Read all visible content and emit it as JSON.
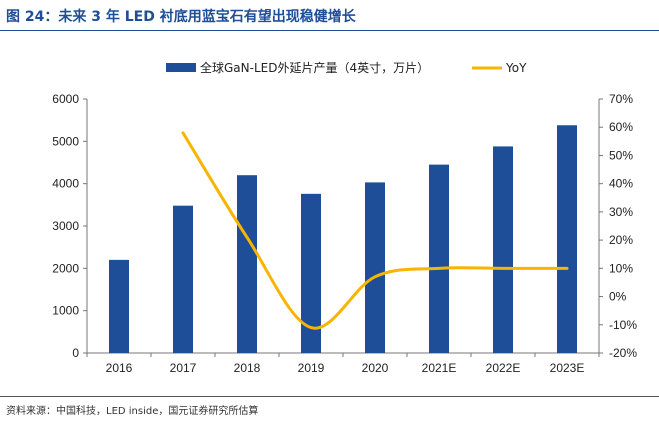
{
  "figure": {
    "title": "图 24：未来 3 年 LED 衬底用蓝宝石有望出现稳健增长",
    "source": "资料来源：中国科技，LED inside，国元证券研究所估算"
  },
  "colors": {
    "bar": "#1f4e98",
    "line": "#f7b500",
    "title": "#1f4e98"
  },
  "chart_data": {
    "type": "bar",
    "categories": [
      "2016",
      "2017",
      "2018",
      "2019",
      "2020",
      "2021E",
      "2022E",
      "2023E"
    ],
    "series": [
      {
        "name": "全球GaN-LED外延片产量（4英寸，万片）",
        "type": "bar",
        "axis": "left",
        "values": [
          2200,
          3480,
          4200,
          3760,
          4030,
          4450,
          4880,
          5380
        ]
      },
      {
        "name": "YoY",
        "type": "line",
        "axis": "right",
        "values": [
          null,
          0.58,
          0.21,
          -0.11,
          0.07,
          0.1,
          0.1,
          0.1
        ]
      }
    ],
    "y_left": {
      "min": 0,
      "max": 6000,
      "ticks": [
        "0",
        "1000",
        "2000",
        "3000",
        "4000",
        "5000",
        "6000"
      ]
    },
    "y_right": {
      "min": -0.2,
      "max": 0.7,
      "ticks": [
        "-20%",
        "-10%",
        "0%",
        "10%",
        "20%",
        "30%",
        "40%",
        "50%",
        "60%",
        "70%"
      ]
    },
    "grid": false,
    "legend_position": "top"
  }
}
